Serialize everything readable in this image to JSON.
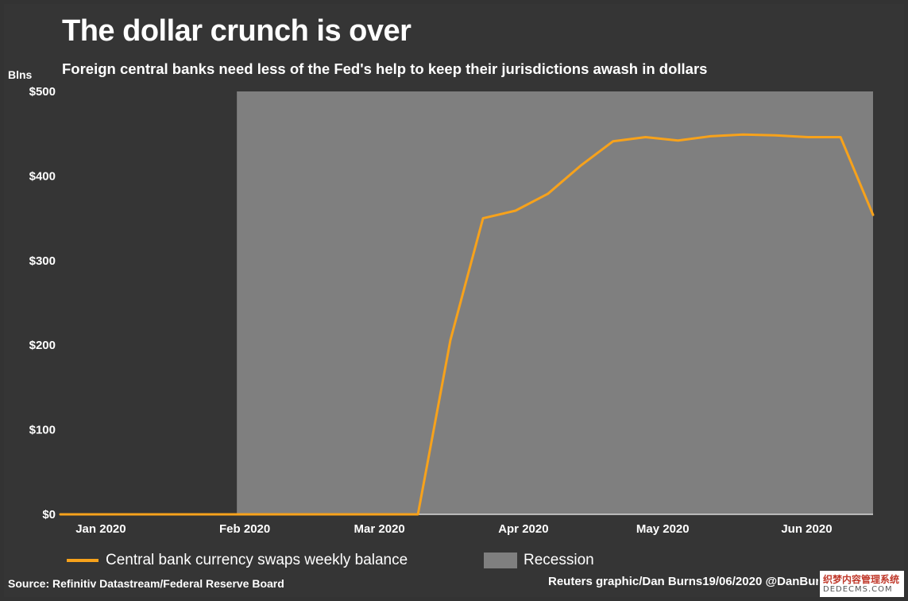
{
  "title": "The dollar crunch is over",
  "subtitle": "Foreign central banks need less of the Fed's help to keep their jurisdictions awash in dollars",
  "unit_label": "Blns",
  "legend": {
    "series_label": "Central bank currency swaps weekly balance",
    "recession_label": "Recession"
  },
  "source": "Source: Refinitiv Datastream/Federal Reserve Board",
  "credit": "Reuters graphic/Dan Burns19/06/2020 @DanBurns",
  "watermark": {
    "top": "织梦内容管理系统",
    "bottom": "DEDECMS.COM"
  },
  "colors": {
    "line": "#f7a21b",
    "recession": "#7f7f7f",
    "background": "#353535"
  },
  "chart_data": {
    "type": "line",
    "title": "The dollar crunch is over",
    "subtitle": "Foreign central banks need less of the Fed's help to keep their jurisdictions awash in dollars",
    "ylabel": "Blns",
    "ylim": [
      0,
      500
    ],
    "y_ticks": [
      0,
      100,
      200,
      300,
      400,
      500
    ],
    "y_tick_labels": [
      "$0",
      "$100",
      "$200",
      "$300",
      "$400",
      "$500"
    ],
    "xlim": [
      "2019-12-25",
      "2020-06-17"
    ],
    "x_ticks": [
      "2020-01-01",
      "2020-02-01",
      "2020-03-01",
      "2020-04-01",
      "2020-05-01",
      "2020-06-01"
    ],
    "x_tick_labels": [
      "Jan 2020",
      "Feb 2020",
      "Mar 2020",
      "Apr 2020",
      "May 2020",
      "Jun 2020"
    ],
    "grid": false,
    "legend_position": "bottom",
    "recession_span": [
      "2020-02-01",
      "2020-06-17"
    ],
    "series": [
      {
        "name": "Central bank currency swaps weekly balance",
        "x": [
          "2019-12-25",
          "2020-01-01",
          "2020-01-08",
          "2020-01-15",
          "2020-01-22",
          "2020-01-29",
          "2020-02-05",
          "2020-02-12",
          "2020-02-19",
          "2020-02-26",
          "2020-03-04",
          "2020-03-11",
          "2020-03-18",
          "2020-03-25",
          "2020-04-01",
          "2020-04-08",
          "2020-04-15",
          "2020-04-22",
          "2020-04-29",
          "2020-05-06",
          "2020-05-13",
          "2020-05-20",
          "2020-05-27",
          "2020-06-03",
          "2020-06-10",
          "2020-06-17"
        ],
        "values": [
          0,
          0,
          0,
          0,
          0,
          0,
          0,
          0,
          0,
          0,
          0,
          0,
          206,
          350,
          359,
          379,
          412,
          441,
          446,
          442,
          447,
          449,
          448,
          446,
          446,
          354
        ]
      }
    ]
  }
}
